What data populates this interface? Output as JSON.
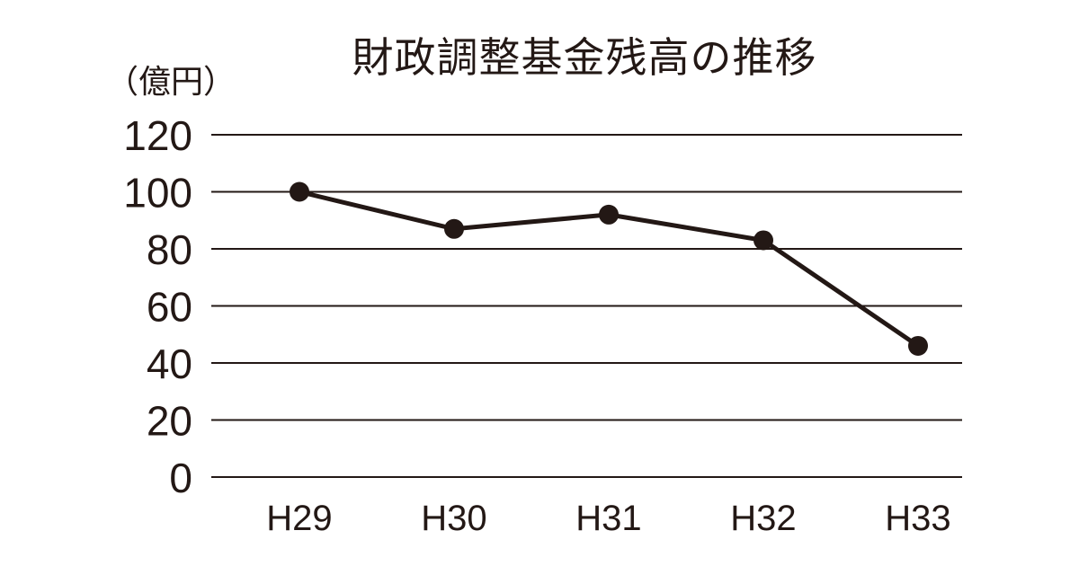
{
  "chart_data": {
    "type": "line",
    "title": "財政調整基金残高の推移",
    "ylabel": "（億円）",
    "xlabel": "",
    "categories": [
      "H29",
      "H30",
      "H31",
      "H32",
      "H33"
    ],
    "series": [
      {
        "values": [
          100,
          87,
          92,
          83,
          46
        ]
      }
    ],
    "ylim": [
      0,
      120
    ],
    "yticks": [
      "0",
      "20",
      "40",
      "60",
      "80",
      "100",
      "120"
    ],
    "grid": true,
    "legend": "none",
    "colors": {
      "line": "#231815",
      "grid": "#231815",
      "text": "#231815"
    }
  }
}
